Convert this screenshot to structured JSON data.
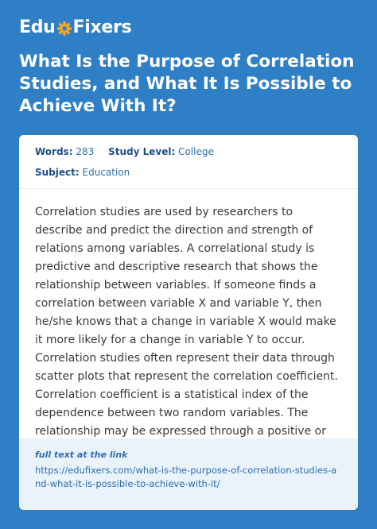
{
  "brand": {
    "left": "Edu",
    "right": "Fixers",
    "accent_color": "#f5a623"
  },
  "title": "What Is the Purpose of Correlation Studies, and What It Is Possible to Achieve With It?",
  "meta": {
    "words_label": "Words:",
    "words_value": "283",
    "level_label": "Study Level:",
    "level_value": "College",
    "subject_label": "Subject:",
    "subject_value": "Education"
  },
  "body": "Correlation studies are used by researchers to describe and predict the direction and strength of relations among variables. A correlational study is predictive and descriptive research that shows the relationship between variables. If someone finds a correlation between variable X and variable Y, then he/she knows that a change in variable X would make it more likely for a change in variable Y to occur. Correlation studies often represent their data through scatter plots that represent the correlation coefficient. Correlation coefficient is a statistical index of the dependence between two random variables. The relationship may be expressed through a positive or negative correlation. The first one means tha...",
  "footer": {
    "label": "full text at the link",
    "url": "https://edufixers.com/what-is-the-purpose-of-correlation-studies-and-what-it-is-possible-to-achieve-with-it/"
  }
}
